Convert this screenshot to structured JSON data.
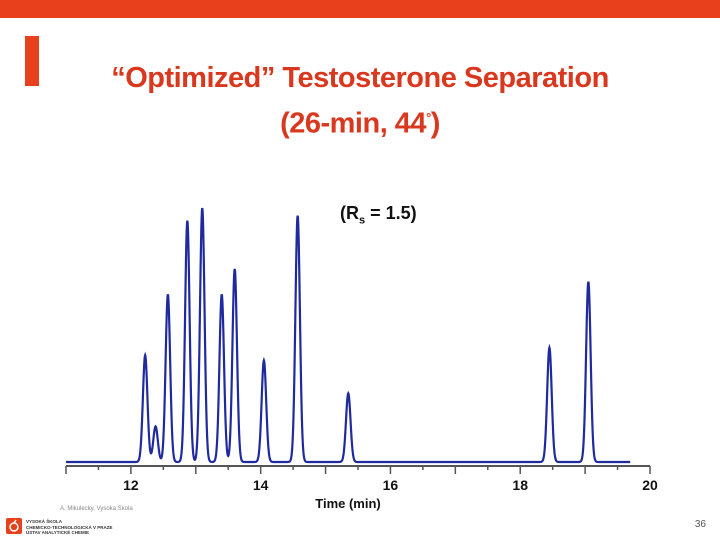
{
  "slide": {
    "title_line1": "“Optimized” Testosterone Separation",
    "title_line2_pre": "(26-min, 44",
    "title_line2_sup": "°",
    "title_line2_post": ")",
    "page_number": "36",
    "footer_note": "A. Mikulecky, Vysoka Skola",
    "footer_lines": [
      "VYSOKÁ ŠKOLA",
      "CHEMICKO-TECHNOLOGICKÁ V PRAZE",
      "ÚSTAV ANALYTICKÉ CHEMIE"
    ],
    "colors": {
      "accent": "#e8401c",
      "title": "#d9381e",
      "trace": "#1f2a9e",
      "logo": "#e8401c"
    }
  },
  "rs_label": {
    "pre": "(R",
    "sub": "s",
    "post": " = 1.5)"
  },
  "chart_data": {
    "type": "line",
    "title": "",
    "xlabel": "Time (min)",
    "ylabel": "",
    "xlim": [
      11,
      20
    ],
    "ylim": [
      0,
      1
    ],
    "xticks": [
      12,
      14,
      16,
      18,
      20
    ],
    "tick_labels": [
      "12",
      "14",
      "16",
      "18",
      "20"
    ],
    "grid": false,
    "series": [
      {
        "name": "chromatogram",
        "peaks": [
          {
            "t": 12.22,
            "h": 0.42
          },
          {
            "t": 12.38,
            "h": 0.14
          },
          {
            "t": 12.57,
            "h": 0.66
          },
          {
            "t": 12.87,
            "h": 0.95
          },
          {
            "t": 13.1,
            "h": 1.0
          },
          {
            "t": 13.4,
            "h": 0.66
          },
          {
            "t": 13.6,
            "h": 0.76
          },
          {
            "t": 14.05,
            "h": 0.4
          },
          {
            "t": 14.57,
            "h": 0.97
          },
          {
            "t": 15.35,
            "h": 0.27
          },
          {
            "t": 18.45,
            "h": 0.45
          },
          {
            "t": 19.05,
            "h": 0.71
          }
        ],
        "peak_width_min": 0.035
      }
    ]
  }
}
